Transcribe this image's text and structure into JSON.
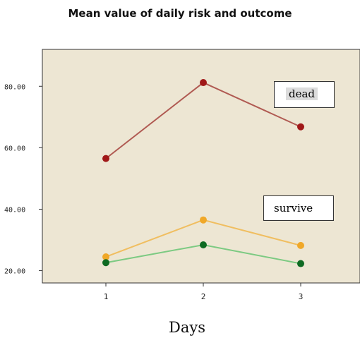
{
  "chart_data": {
    "type": "line",
    "title": "Mean value of daily risk and outcome",
    "xlabel": "Days",
    "ylabel": "",
    "categories": [
      "1",
      "2",
      "3"
    ],
    "yticks": [
      "20.00",
      "40.00",
      "60.00",
      "80.00"
    ],
    "ylim": [
      16,
      92
    ],
    "grid": false,
    "series": [
      {
        "name": "dead",
        "values": [
          56.5,
          81.2,
          66.8
        ],
        "color": "#b05a52",
        "marker_color": "#a01818"
      },
      {
        "name": "",
        "values": [
          24.5,
          36.5,
          28.2
        ],
        "color": "#f0be60",
        "marker_color": "#f0a828"
      },
      {
        "name": "",
        "values": [
          22.6,
          28.4,
          22.3
        ],
        "color": "#7cca82",
        "marker_color": "#0e6a22"
      }
    ],
    "annotations": [
      {
        "text": "dead",
        "id": "dead"
      },
      {
        "text": "survive",
        "id": "survive"
      }
    ],
    "plot_background": "#ede6d3"
  }
}
